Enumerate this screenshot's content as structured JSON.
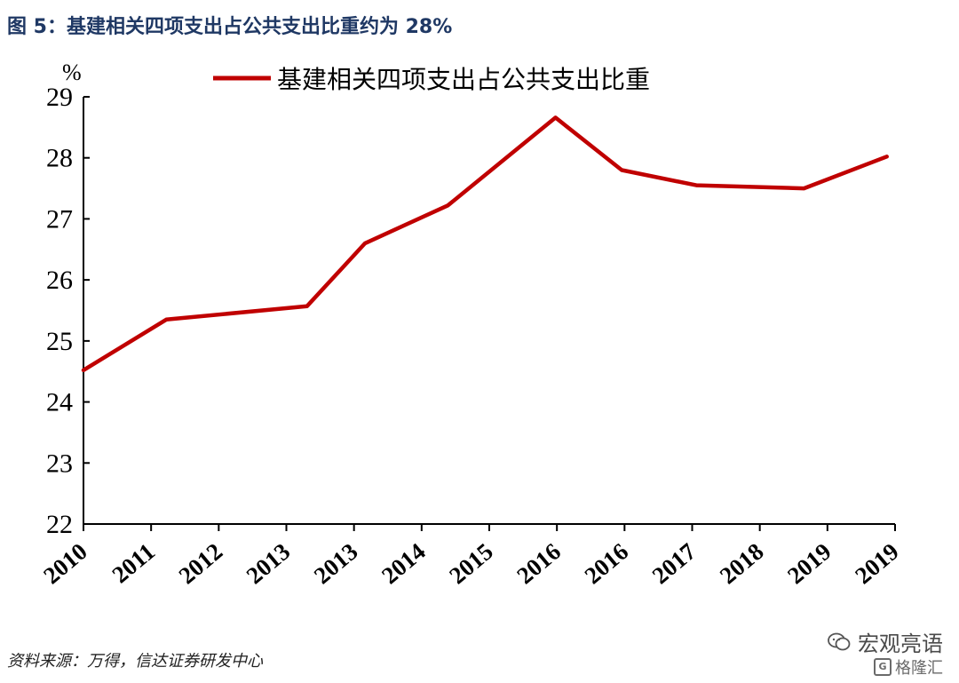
{
  "figure": {
    "title": "图 5：基建相关四项支出占公共支出比重约为 28%",
    "source": "资料来源：万得，信达证券研发中心"
  },
  "watermark": {
    "name": "宏观亮语",
    "icon": "wechat-icon",
    "sub": "格隆汇",
    "sub_icon": "gelonghui-logo-icon"
  },
  "chart_data": {
    "type": "line",
    "title": "",
    "xlabel": "",
    "ylabel": "%",
    "ylim": [
      22,
      29
    ],
    "yticks": [
      22,
      23,
      24,
      25,
      26,
      27,
      28,
      29
    ],
    "categories": [
      "2010",
      "2011",
      "2012",
      "2013",
      "2013",
      "2014",
      "2015",
      "2016",
      "2016",
      "2017",
      "2018",
      "2019",
      "2019"
    ],
    "x": [
      2010.0,
      2011.0,
      2011.9,
      2012.7,
      2013.5,
      2014.4,
      2015.0,
      2015.7,
      2016.5,
      2017.4,
      2018.2,
      2018.7,
      2019.7
    ],
    "series": [
      {
        "name": "基建相关四项支出占公共支出比重",
        "color": "#c00000",
        "values": [
          24.52,
          25.35,
          25.45,
          25.57,
          26.6,
          27.22,
          27.8,
          28.66,
          27.8,
          27.55,
          27.52,
          27.5,
          28.02
        ]
      }
    ],
    "line_points": [
      [
        2010.0,
        24.52
      ],
      [
        2011.0,
        25.35
      ],
      [
        2012.7,
        25.57
      ],
      [
        2013.4,
        26.6
      ],
      [
        2014.4,
        27.22
      ],
      [
        2015.7,
        28.66
      ],
      [
        2016.5,
        27.8
      ],
      [
        2017.4,
        27.55
      ],
      [
        2018.7,
        27.5
      ],
      [
        2019.7,
        28.02
      ]
    ],
    "legend_position": "top",
    "grid": false
  }
}
